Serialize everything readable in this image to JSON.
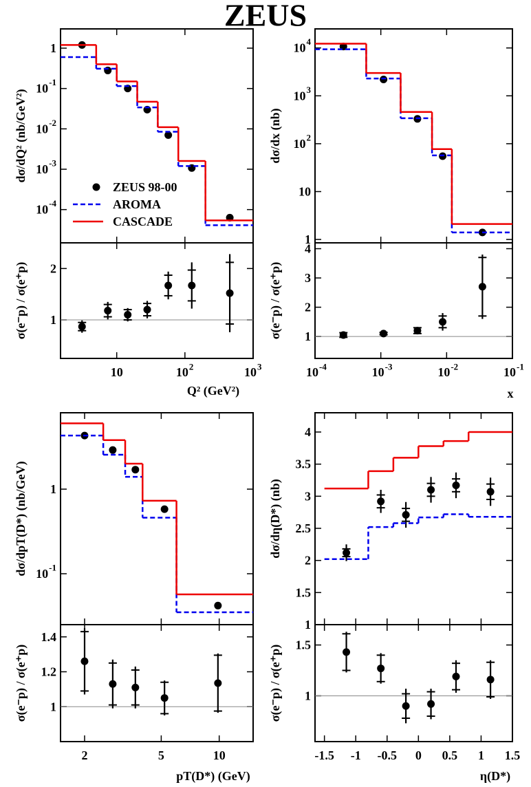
{
  "title": "ZEUS",
  "chart_data": [
    {
      "type": "step",
      "log_x": true,
      "log_y": true,
      "xlim": [
        1.5,
        1000
      ],
      "ylim": [
        1.5e-05,
        3
      ],
      "xticks": [
        10,
        100,
        1000
      ],
      "yticks": [
        1,
        {
          "value": 0.1,
          "label": "10",
          "exponent": "-1"
        },
        {
          "value": 0.01,
          "label": "10",
          "exponent": "-2"
        },
        {
          "value": 0.001,
          "label": "10",
          "exponent": "-3"
        },
        {
          "value": 0.0001,
          "label": "10",
          "exponent": "-4"
        }
      ],
      "ylabel": "dσ/dQ² (nb/GeV²)",
      "legend": "bottom-left",
      "bins": [
        1.5,
        5,
        10,
        20,
        40,
        80,
        200,
        1000
      ],
      "x": [
        3.1,
        7.4,
        14.5,
        28,
        57,
        126,
        455
      ],
      "series": [
        {
          "name": "ZEUS 98-00",
          "color": "#000000",
          "style": "points",
          "values": [
            1.2,
            0.28,
            0.1,
            0.03,
            0.007,
            0.00107,
            6.3e-05
          ]
        },
        {
          "name": "AROMA",
          "color": "#0000ee",
          "style": "dashed",
          "values": [
            0.6,
            0.31,
            0.115,
            0.034,
            0.0085,
            0.0012,
            4.1e-05
          ]
        },
        {
          "name": "CASCADE",
          "color": "#ee0000",
          "style": "solid",
          "values": [
            1.2,
            0.4,
            0.15,
            0.047,
            0.011,
            0.0016,
            5.4e-05
          ]
        }
      ]
    },
    {
      "type": "errorbar",
      "log_x": true,
      "log_y": false,
      "xlim": [
        1.5,
        1000
      ],
      "ylim": [
        0.25,
        2.5
      ],
      "xticks": [
        10,
        {
          "value": 100,
          "label": "10",
          "exponent": "2"
        },
        {
          "value": 1000,
          "label": "10",
          "exponent": "3"
        }
      ],
      "yticks": [
        1,
        2
      ],
      "reference": 1,
      "ylabel": "σ(e⁻p) / σ(e⁺p)",
      "xlabel": "Q² (GeV²)",
      "x": [
        3.1,
        7.4,
        14.5,
        28,
        57,
        126,
        455
      ],
      "values": [
        0.87,
        1.18,
        1.1,
        1.2,
        1.67,
        1.67,
        1.52
      ],
      "errors": [
        0.12,
        0.17,
        0.13,
        0.17,
        0.27,
        0.45,
        0.76
      ],
      "stat_errors": [
        0.08,
        0.12,
        0.1,
        0.12,
        0.2,
        0.3,
        0.6
      ]
    },
    {
      "type": "step",
      "log_x": true,
      "log_y": true,
      "xlim": [
        0.0001,
        0.1
      ],
      "ylim": [
        0.85,
        25000
      ],
      "xticks": [
        0.0001,
        0.001,
        0.01,
        0.1
      ],
      "yticks": [
        1,
        10,
        {
          "value": 100,
          "label": "10",
          "exponent": "2"
        },
        {
          "value": 1000,
          "label": "10",
          "exponent": "3"
        },
        {
          "value": 10000,
          "label": "10",
          "exponent": "4"
        }
      ],
      "ylabel": "dσ/dx (nb)",
      "bins": [
        0.0001,
        0.0006,
        0.002,
        0.006,
        0.012,
        0.1
      ],
      "x": [
        0.00027,
        0.0011,
        0.0036,
        0.0087,
        0.035
      ],
      "series": [
        {
          "color": "#000000",
          "style": "points",
          "values": [
            10700,
            2200,
            330,
            55,
            1.4
          ]
        },
        {
          "color": "#0000ee",
          "style": "dashed",
          "values": [
            9400,
            2300,
            340,
            57,
            1.4
          ]
        },
        {
          "color": "#ee0000",
          "style": "solid",
          "values": [
            12300,
            3000,
            460,
            77,
            2.1
          ]
        }
      ]
    },
    {
      "type": "errorbar",
      "log_x": true,
      "log_y": false,
      "xlim": [
        0.0001,
        0.1
      ],
      "ylim": [
        0.25,
        4.2
      ],
      "xticks": [
        {
          "value": 0.0001,
          "label": "10",
          "exponent": "-4"
        },
        {
          "value": 0.001,
          "label": "10",
          "exponent": "-3"
        },
        {
          "value": 0.01,
          "label": "10",
          "exponent": "-2"
        },
        {
          "value": 0.1,
          "label": "10",
          "exponent": "-1"
        }
      ],
      "yticks": [
        1,
        2,
        3,
        4
      ],
      "reference": 1,
      "ylabel": "σ(e⁻p) / σ(e⁺p)",
      "xlabel": "x",
      "x": [
        0.00027,
        0.0011,
        0.0036,
        0.0087,
        0.035
      ],
      "values": [
        1.05,
        1.1,
        1.2,
        1.5,
        2.7
      ],
      "errors": [
        0.1,
        0.05,
        0.12,
        0.3,
        1.1
      ],
      "stat_errors": [
        0.08,
        0.04,
        0.1,
        0.2,
        1.0
      ]
    },
    {
      "type": "step",
      "log_x": true,
      "log_y": true,
      "xlim": [
        1.5,
        15
      ],
      "ylim": [
        0.025,
        8
      ],
      "xticks": [
        2,
        5,
        10
      ],
      "yticks": [
        1,
        {
          "value": 0.1,
          "label": "10",
          "exponent": "-1"
        }
      ],
      "ylabel": "dσ/dpT(D*) (nb/GeV)",
      "bins": [
        1.5,
        2.5,
        3.25,
        4,
        6,
        15
      ],
      "x": [
        2,
        2.8,
        3.67,
        5.2,
        9.85
      ],
      "series": [
        {
          "color": "#000000",
          "style": "points",
          "values": [
            4.3,
            2.9,
            1.7,
            0.58,
            0.042
          ]
        },
        {
          "color": "#0000ee",
          "style": "dashed",
          "values": [
            4.3,
            2.55,
            1.4,
            0.46,
            0.035
          ]
        },
        {
          "color": "#ee0000",
          "style": "solid",
          "values": [
            6,
            3.8,
            2,
            0.73,
            0.057
          ]
        }
      ]
    },
    {
      "type": "errorbar",
      "log_x": true,
      "log_y": false,
      "xlim": [
        1.5,
        15
      ],
      "ylim": [
        0.8,
        1.47
      ],
      "xticks": [
        2,
        5,
        10
      ],
      "yticks": [
        1,
        1.2,
        1.4
      ],
      "reference": 1,
      "ylabel": "σ(e⁻p) / σ(e⁺p)",
      "xlabel": "pT(D*) (GeV)",
      "x": [
        2,
        2.8,
        3.67,
        5.2,
        9.85
      ],
      "values": [
        1.26,
        1.13,
        1.11,
        1.05,
        1.135
      ],
      "errors": [
        0.19,
        0.14,
        0.12,
        0.1,
        0.17
      ],
      "stat_errors": [
        0.17,
        0.12,
        0.1,
        0.09,
        0.16
      ]
    },
    {
      "type": "step",
      "log_x": false,
      "log_y": false,
      "xlim": [
        -1.65,
        1.5
      ],
      "ylim": [
        1,
        4.3
      ],
      "xticks": [
        -1.5,
        -1,
        -0.5,
        0,
        0.5,
        1,
        1.5
      ],
      "yticks": [
        1,
        1.5,
        2,
        2.5,
        3,
        3.5,
        4
      ],
      "ylabel": "dσ/dη(D*) (nb)",
      "bins": [
        -1.5,
        -0.8,
        -0.4,
        0,
        0.4,
        0.8,
        1.5
      ],
      "x": [
        -1.15,
        -0.6,
        -0.2,
        0.2,
        0.6,
        1.15
      ],
      "series": [
        {
          "color": "#000000",
          "style": "points",
          "values": [
            2.12,
            2.92,
            2.71,
            3.1,
            3.17,
            3.07
          ],
          "errors": [
            0.13,
            0.18,
            0.2,
            0.2,
            0.2,
            0.22
          ],
          "stat_errors": [
            0.06,
            0.1,
            0.1,
            0.1,
            0.1,
            0.12
          ]
        },
        {
          "color": "#0000ee",
          "style": "dashed",
          "values": [
            2.02,
            2.52,
            2.58,
            2.67,
            2.72,
            2.68
          ]
        },
        {
          "color": "#ee0000",
          "style": "solid",
          "values": [
            3.12,
            3.39,
            3.6,
            3.78,
            3.86,
            4.0
          ]
        }
      ]
    },
    {
      "type": "errorbar",
      "log_x": false,
      "log_y": false,
      "xlim": [
        -1.65,
        1.5
      ],
      "ylim": [
        0.55,
        1.7
      ],
      "xticks": [
        -1.5,
        -1,
        -0.5,
        0,
        0.5,
        1,
        1.5
      ],
      "yticks": [
        1,
        1.5
      ],
      "reference": 1,
      "ylabel": "σ(e⁻p) / σ(e⁺p)",
      "xlabel": "η(D*)",
      "x": [
        -1.15,
        -0.6,
        -0.2,
        0.2,
        0.6,
        1.15
      ],
      "values": [
        1.43,
        1.27,
        0.9,
        0.92,
        1.19,
        1.16
      ],
      "errors": [
        0.2,
        0.15,
        0.17,
        0.15,
        0.16,
        0.19
      ],
      "stat_errors": [
        0.18,
        0.13,
        0.12,
        0.12,
        0.13,
        0.17
      ]
    }
  ]
}
